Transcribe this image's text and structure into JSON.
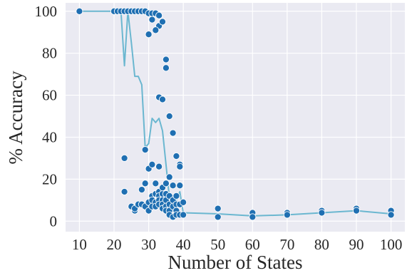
{
  "chart_data": {
    "type": "scatter",
    "title": "",
    "xlabel": "Number of States",
    "ylabel": "% Accuracy",
    "xlim": [
      6,
      104
    ],
    "ylim": [
      -5,
      104
    ],
    "xticks": [
      10,
      20,
      30,
      40,
      50,
      60,
      70,
      80,
      90,
      100
    ],
    "yticks": [
      0,
      20,
      40,
      60,
      80,
      100
    ],
    "grid": true,
    "colors": {
      "background": "#eaeaf2",
      "grid": "#ffffff",
      "line": "#6bb7d0",
      "point": "#1f6fb2",
      "point_edge": "#ffffff"
    },
    "series": [
      {
        "type": "line",
        "x": [
          10,
          20,
          21,
          22,
          23,
          24,
          25,
          26,
          27,
          28,
          29,
          30,
          31,
          32,
          33,
          34,
          35,
          36,
          37,
          38,
          39,
          40,
          50,
          60,
          70,
          80,
          90,
          100
        ],
        "y": [
          100,
          100,
          100,
          100,
          74,
          100,
          85,
          69,
          69,
          65,
          35,
          37,
          49,
          47,
          49,
          43,
          27,
          11,
          10,
          10,
          14,
          4,
          3.5,
          2.5,
          3,
          4,
          5,
          3.5
        ]
      },
      {
        "type": "scatter",
        "x": [
          10,
          20,
          21,
          22,
          23,
          24,
          25,
          26,
          27,
          28,
          29,
          30,
          31,
          32,
          33,
          33,
          34,
          35,
          29,
          30,
          31,
          32,
          33,
          34,
          35,
          36,
          37,
          38,
          39,
          39,
          40,
          23,
          23,
          25,
          26,
          26,
          27,
          28,
          28,
          29,
          29,
          30,
          30,
          30,
          31,
          31,
          31,
          31,
          32,
          32,
          32,
          32,
          33,
          33,
          33,
          33,
          33,
          34,
          34,
          34,
          34,
          34,
          35,
          35,
          35,
          35,
          35,
          36,
          36,
          36,
          36,
          36,
          37,
          37,
          37,
          37,
          38,
          38,
          38,
          38,
          39,
          39,
          39,
          40,
          40,
          50,
          50,
          60,
          60,
          70,
          70,
          80,
          80,
          90,
          90,
          100,
          100
        ],
        "y": [
          100,
          100,
          100,
          100,
          100,
          100,
          100,
          100,
          100,
          100,
          100,
          99,
          99,
          99,
          98,
          93,
          95,
          77,
          34,
          89,
          96,
          91,
          59,
          58,
          73,
          50,
          42,
          31,
          27,
          26,
          9,
          30,
          14,
          7,
          5,
          6,
          8,
          15,
          8,
          18,
          7,
          25,
          9,
          5,
          27,
          12,
          10,
          7,
          18,
          13,
          9,
          7,
          14,
          12,
          10,
          8,
          26,
          13,
          10,
          8,
          6,
          16,
          18,
          13,
          10,
          7,
          5,
          21,
          12,
          8,
          5,
          3,
          17,
          10,
          7,
          2,
          12,
          8,
          5,
          3,
          17,
          8,
          3,
          9,
          3,
          6,
          2,
          4,
          2,
          4,
          3,
          5,
          4,
          6,
          5,
          5,
          3
        ]
      }
    ]
  }
}
